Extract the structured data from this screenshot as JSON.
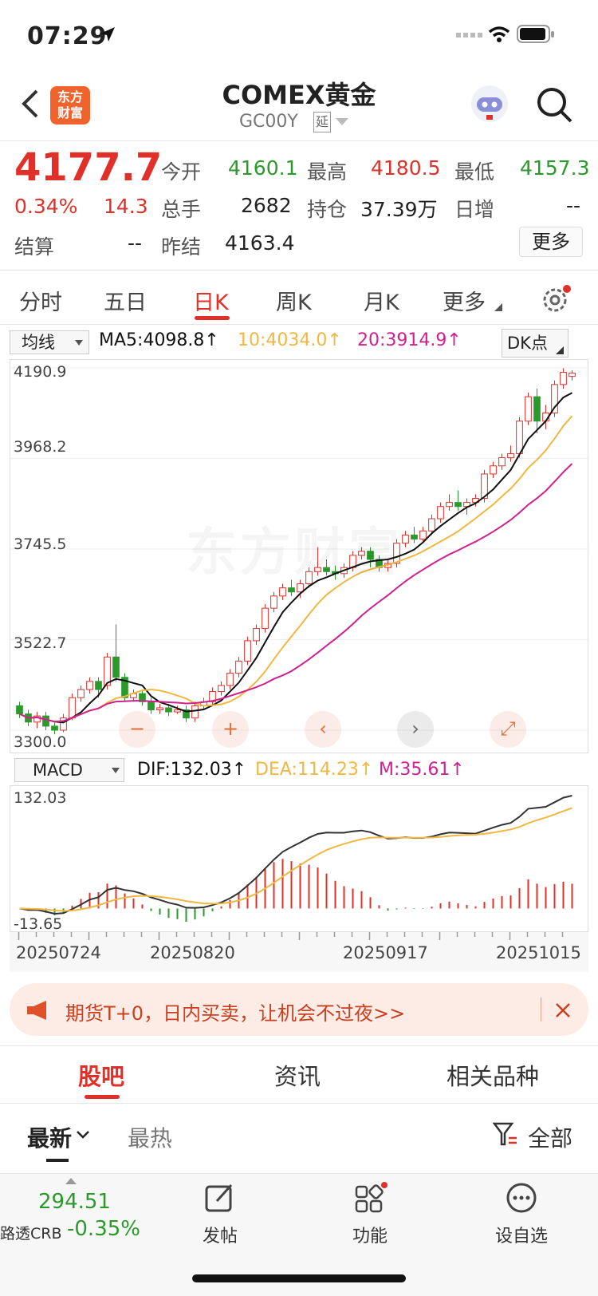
{
  "status_bar": {
    "time": "07:29"
  },
  "header": {
    "logo_text_1": "东方",
    "logo_text_2": "财富",
    "title": "COMEX黄金",
    "code": "GC00Y",
    "delay_badge": "延"
  },
  "quote": {
    "price": "4177.7",
    "change_pct": "0.34%",
    "change": "14.3",
    "open_label": "今开",
    "open": "4160.1",
    "high_label": "最高",
    "high": "4180.5",
    "low_label": "最低",
    "low": "4157.3",
    "volume_label": "总手",
    "volume": "2682",
    "oi_label": "持仓",
    "oi": "37.39万",
    "daily_inc_label": "日增",
    "daily_inc": "--",
    "settle_label": "结算",
    "settle": "--",
    "prev_settle_label": "昨结",
    "prev_settle": "4163.4",
    "more_button": "更多"
  },
  "period_tabs": {
    "t1": "分时",
    "t2": "五日",
    "t3": "日K",
    "t4": "周K",
    "t5": "月K",
    "t6": "更多"
  },
  "ma_bar": {
    "selector": "均线",
    "ma5": "MA5:4098.8↑",
    "ma10": "10:4034.0↑",
    "ma20": "20:3914.9↑",
    "dk": "DK点"
  },
  "price_axis": {
    "p1": "4190.9",
    "p2": "3968.2",
    "p3": "3745.5",
    "p4": "3522.7",
    "p5": "3300.0"
  },
  "watermark": "东方财富",
  "macd_bar": {
    "selector": "MACD",
    "dif": "DIF:132.03↑",
    "dea": "DEA:114.23↑",
    "m": "M:35.61↑",
    "top": "132.03",
    "bottom": "-13.65"
  },
  "date_axis": {
    "d1": "20250724",
    "d2": "20250820",
    "d3": "20250917",
    "d4": "20251015"
  },
  "banner": {
    "text": "期货T+0，日内买卖，让机会不过夜>>"
  },
  "content_tabs": {
    "t1": "股吧",
    "t2": "资讯",
    "t3": "相关品种"
  },
  "sort": {
    "latest": "最新",
    "hot": "最热",
    "filter": "全部"
  },
  "bottom_bar": {
    "index_value": "294.51",
    "index_name": "路透CRB",
    "index_change": "-0.35%",
    "post": "发帖",
    "functions": "功能",
    "watchlist": "设自选"
  },
  "colors": {
    "up": "#e0302a",
    "down": "#2a9a2a",
    "ma5": "#111111",
    "ma10": "#f0b840",
    "ma20": "#d02090"
  },
  "chart_data": {
    "type": "candlestick",
    "ylim": [
      3300.0,
      4190.9
    ],
    "ma10_ma20_ma5_latest": {
      "ma5": 4098.8,
      "ma10": 4034.0,
      "ma20": 3914.9
    },
    "candles": [
      [
        3360,
        3340,
        3370,
        3330
      ],
      [
        3340,
        3320,
        3350,
        3310
      ],
      [
        3320,
        3335,
        3345,
        3305
      ],
      [
        3335,
        3310,
        3345,
        3300
      ],
      [
        3310,
        3300,
        3320,
        3290
      ],
      [
        3300,
        3330,
        3340,
        3295
      ],
      [
        3330,
        3380,
        3390,
        3325
      ],
      [
        3380,
        3400,
        3410,
        3370
      ],
      [
        3400,
        3420,
        3430,
        3390
      ],
      [
        3420,
        3400,
        3430,
        3380
      ],
      [
        3410,
        3480,
        3490,
        3400
      ],
      [
        3480,
        3430,
        3560,
        3420
      ],
      [
        3430,
        3380,
        3440,
        3370
      ],
      [
        3380,
        3390,
        3400,
        3370
      ],
      [
        3390,
        3370,
        3400,
        3360
      ],
      [
        3370,
        3350,
        3380,
        3340
      ],
      [
        3350,
        3355,
        3365,
        3340
      ],
      [
        3355,
        3345,
        3365,
        3335
      ],
      [
        3345,
        3350,
        3360,
        3340
      ],
      [
        3350,
        3330,
        3360,
        3320
      ],
      [
        3330,
        3360,
        3370,
        3320
      ],
      [
        3360,
        3370,
        3380,
        3350
      ],
      [
        3370,
        3395,
        3405,
        3360
      ],
      [
        3395,
        3410,
        3420,
        3385
      ],
      [
        3410,
        3440,
        3450,
        3400
      ],
      [
        3440,
        3470,
        3480,
        3430
      ],
      [
        3470,
        3520,
        3530,
        3460
      ],
      [
        3520,
        3550,
        3560,
        3510
      ],
      [
        3550,
        3600,
        3610,
        3540
      ],
      [
        3600,
        3630,
        3640,
        3590
      ],
      [
        3630,
        3650,
        3660,
        3620
      ],
      [
        3650,
        3640,
        3670,
        3630
      ],
      [
        3640,
        3660,
        3670,
        3625
      ],
      [
        3660,
        3690,
        3700,
        3650
      ],
      [
        3690,
        3700,
        3750,
        3680
      ],
      [
        3700,
        3690,
        3720,
        3680
      ],
      [
        3690,
        3685,
        3705,
        3670
      ],
      [
        3685,
        3700,
        3710,
        3675
      ],
      [
        3700,
        3730,
        3740,
        3690
      ],
      [
        3730,
        3740,
        3750,
        3720
      ],
      [
        3740,
        3720,
        3750,
        3700
      ],
      [
        3720,
        3700,
        3730,
        3690
      ],
      [
        3700,
        3710,
        3720,
        3690
      ],
      [
        3710,
        3760,
        3770,
        3700
      ],
      [
        3760,
        3780,
        3790,
        3750
      ],
      [
        3780,
        3770,
        3800,
        3760
      ],
      [
        3770,
        3790,
        3800,
        3760
      ],
      [
        3790,
        3820,
        3830,
        3780
      ],
      [
        3820,
        3850,
        3860,
        3810
      ],
      [
        3850,
        3860,
        3880,
        3840
      ],
      [
        3860,
        3850,
        3890,
        3840
      ],
      [
        3850,
        3860,
        3870,
        3830
      ],
      [
        3860,
        3870,
        3880,
        3850
      ],
      [
        3870,
        3930,
        3940,
        3860
      ],
      [
        3930,
        3950,
        3960,
        3920
      ],
      [
        3950,
        3970,
        3980,
        3940
      ],
      [
        3970,
        3980,
        4000,
        3960
      ],
      [
        3980,
        4060,
        4070,
        3970
      ],
      [
        4060,
        4120,
        4130,
        4050
      ],
      [
        4120,
        4060,
        4140,
        4030
      ],
      [
        4060,
        4080,
        4100,
        4040
      ],
      [
        4080,
        4150,
        4160,
        4070
      ],
      [
        4150,
        4180,
        4190,
        4140
      ],
      [
        4170,
        4178,
        4185,
        4160
      ]
    ],
    "macd": {
      "dif_latest": 132.03,
      "dea_latest": 114.23,
      "m_latest": 35.61,
      "ylim": [
        -13.65,
        132.03
      ]
    }
  }
}
